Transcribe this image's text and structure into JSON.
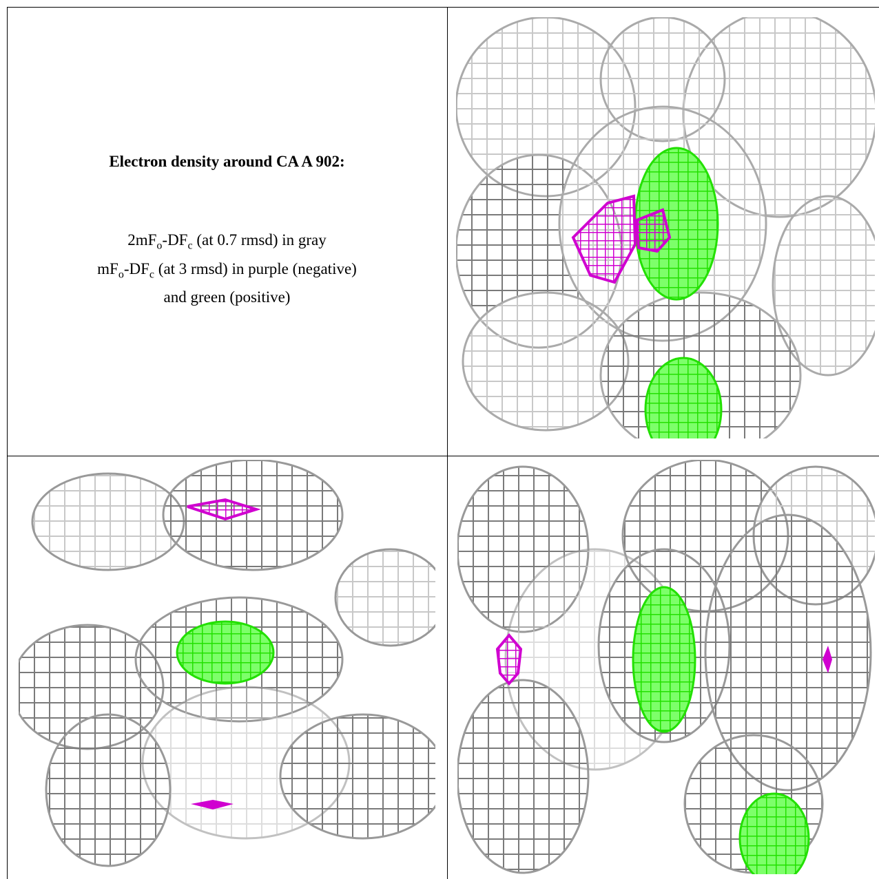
{
  "caption": {
    "title": "Electron density around CA A 902:",
    "lines": [
      [
        "2mF",
        "o",
        "-DF",
        "c",
        " (at 0.7 rmsd) in gray"
      ],
      [
        "mF",
        "o",
        "-DF",
        "c",
        " (at 3 rmsd) in purple (negative)"
      ],
      [
        "and green (positive)"
      ]
    ]
  }
}
